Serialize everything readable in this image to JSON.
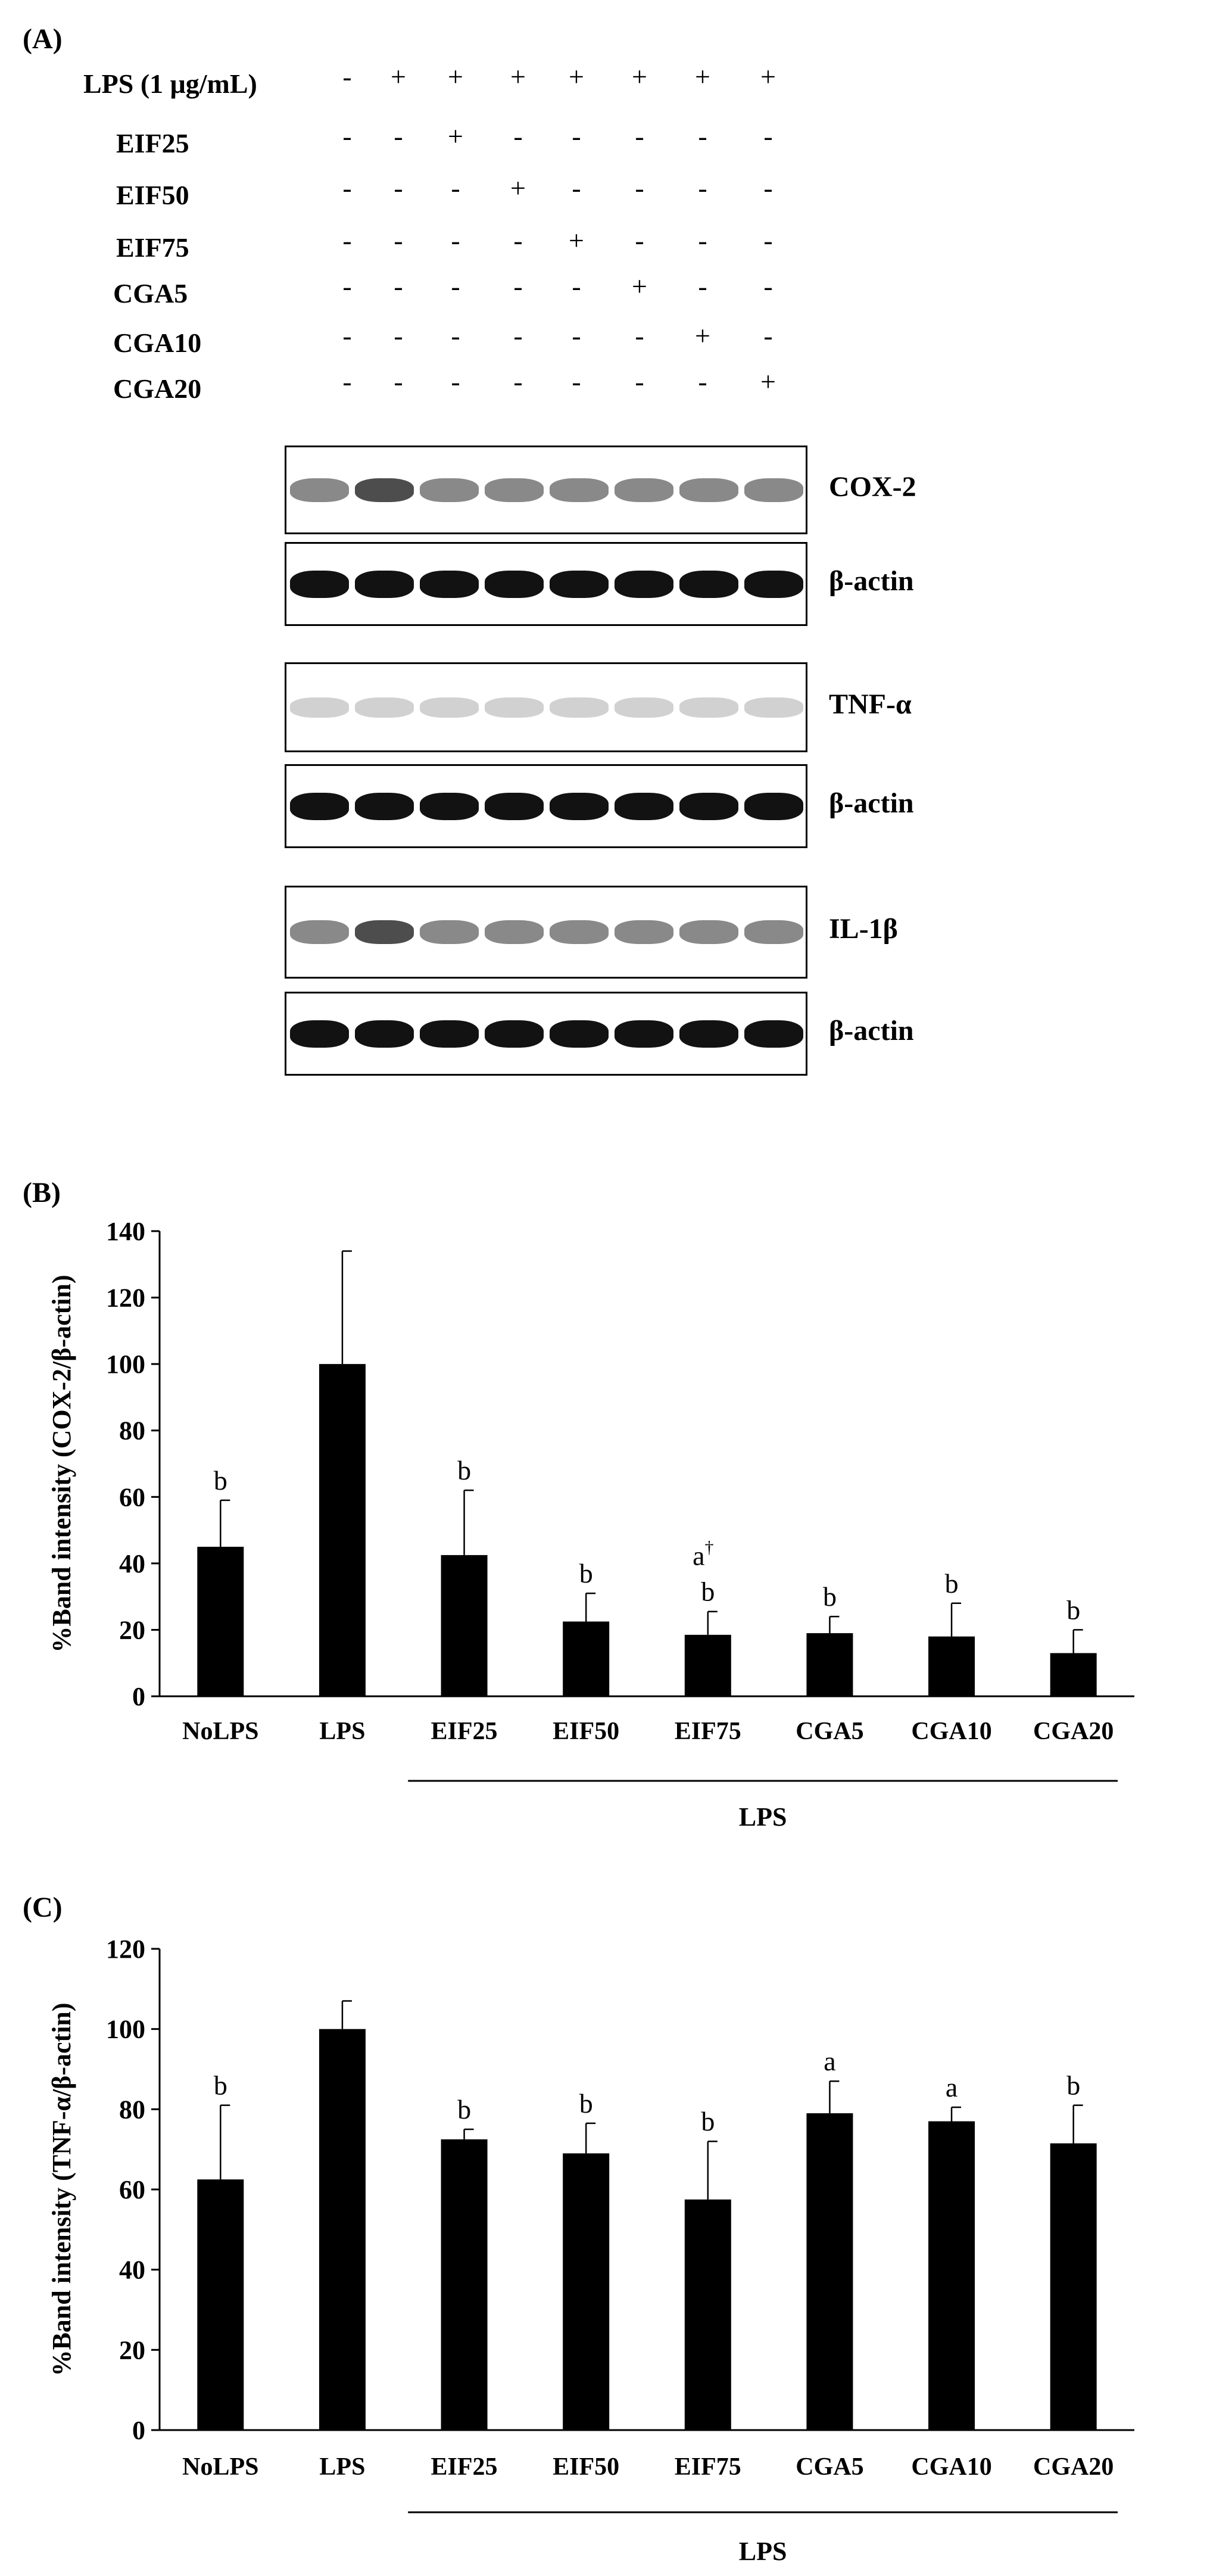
{
  "panel_a": {
    "label": "(A)",
    "treatments": [
      {
        "label": "LPS (1 μg/mL)",
        "signs": [
          "-",
          "+",
          "+",
          "+",
          "+",
          "+",
          "+",
          "+"
        ]
      },
      {
        "label": "EIF25",
        "signs": [
          "-",
          "-",
          "+",
          "-",
          "-",
          "-",
          "-",
          "-"
        ]
      },
      {
        "label": "EIF50",
        "signs": [
          "-",
          "-",
          "-",
          "+",
          "-",
          "-",
          "-",
          "-"
        ]
      },
      {
        "label": "EIF75",
        "signs": [
          "-",
          "-",
          "-",
          "-",
          "+",
          "-",
          "-",
          "-"
        ]
      },
      {
        "label": "CGA5",
        "signs": [
          "-",
          "-",
          "-",
          "-",
          "-",
          "+",
          "-",
          "-"
        ]
      },
      {
        "label": "CGA10",
        "signs": [
          "-",
          "-",
          "-",
          "-",
          "-",
          "-",
          "+",
          "-"
        ]
      },
      {
        "label": "CGA20",
        "signs": [
          "-",
          "-",
          "-",
          "-",
          "-",
          "-",
          "-",
          "+"
        ]
      }
    ],
    "blots": [
      {
        "label": "COX-2",
        "kind": "target"
      },
      {
        "label": "β-actin",
        "kind": "actin"
      },
      {
        "label": "TNF-α",
        "kind": "faint"
      },
      {
        "label": "β-actin",
        "kind": "actin"
      },
      {
        "label": "IL-1β",
        "kind": "target"
      },
      {
        "label": "β-actin",
        "kind": "actin"
      }
    ]
  },
  "chart_data": [
    {
      "panel": "(B)",
      "type": "bar",
      "categories": [
        "NoLPS",
        "LPS",
        "EIF25",
        "EIF50",
        "EIF75",
        "CGA5",
        "CGA10",
        "CGA20"
      ],
      "values": [
        45,
        100,
        42.5,
        22.5,
        18.5,
        19,
        18,
        13
      ],
      "errors": [
        14,
        34,
        19.5,
        8.5,
        7,
        5,
        10,
        7
      ],
      "significance": [
        "b",
        "",
        "b",
        "b",
        "b",
        "b",
        "b",
        "b"
      ],
      "extra_annotations": [
        {
          "category": "EIF75",
          "text": "a",
          "sup": "†"
        }
      ],
      "ylabel": "%Band intensity (COX-2/β-actin)",
      "ylim": [
        0,
        140
      ],
      "yticks": [
        0,
        20,
        40,
        60,
        80,
        100,
        120,
        140
      ],
      "group_label": "LPS",
      "bar_color": "#000000"
    },
    {
      "panel": "(C)",
      "type": "bar",
      "categories": [
        "NoLPS",
        "LPS",
        "EIF25",
        "EIF50",
        "EIF75",
        "CGA5",
        "CGA10",
        "CGA20"
      ],
      "values": [
        62.5,
        100,
        72.5,
        69,
        57.5,
        79,
        77,
        71.5
      ],
      "errors": [
        18.5,
        7,
        2.5,
        7.5,
        14.5,
        8,
        3.5,
        9.5
      ],
      "significance": [
        "b",
        "",
        "b",
        "b",
        "b",
        "a",
        "a",
        "b"
      ],
      "extra_annotations": [],
      "ylabel": "%Band intensity (TNF-α/β-actin)",
      "ylim": [
        0,
        120
      ],
      "yticks": [
        0,
        20,
        40,
        60,
        80,
        100,
        120
      ],
      "group_label": "LPS",
      "bar_color": "#000000"
    }
  ]
}
